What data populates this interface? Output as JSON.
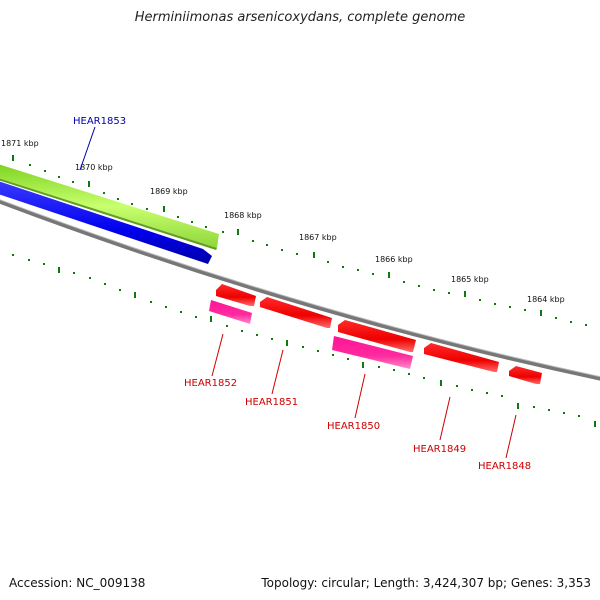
{
  "title": "Herminiimonas arsenicoxydans, complete genome",
  "scale_labels": [
    "1871 kbp",
    "1870 kbp",
    "1869 kbp",
    "1868 kbp",
    "1867 kbp",
    "1866 kbp",
    "1865 kbp",
    "1864 kbp"
  ],
  "genes": [
    {
      "name": "HEAR1853",
      "strand": "forward"
    },
    {
      "name": "HEAR1852",
      "strand": "reverse"
    },
    {
      "name": "HEAR1851",
      "strand": "reverse"
    },
    {
      "name": "HEAR1850",
      "strand": "reverse"
    },
    {
      "name": "HEAR1849",
      "strand": "reverse"
    },
    {
      "name": "HEAR1848",
      "strand": "reverse"
    }
  ],
  "footer": {
    "accession": "Accession: NC_009138",
    "summary": "Topology: circular; Length: 3,424,307 bp; Genes: 3,353"
  },
  "colors": {
    "forward_gene": "#0000ee",
    "forward_cds": "#99ee33",
    "reverse_gene": "#ee0000",
    "reverse_cds": "#ff1493",
    "backbone": "#777777",
    "ticks": "#117711",
    "forward_label": "#0000aa",
    "reverse_label": "#cc0000"
  }
}
